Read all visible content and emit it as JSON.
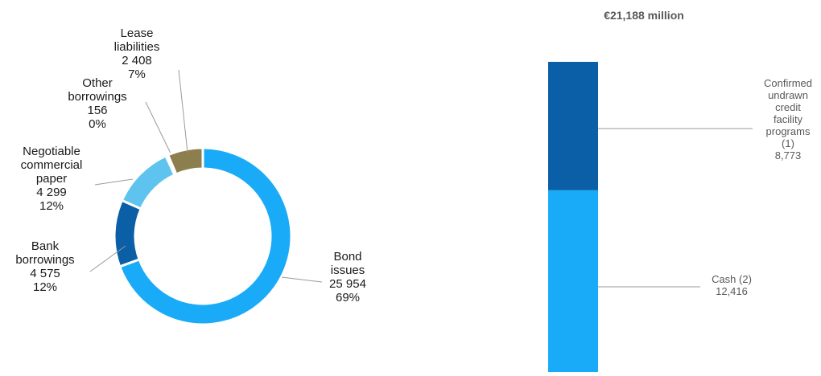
{
  "chart_data": [
    {
      "type": "pie",
      "series": [
        {
          "name": "Bond issues",
          "label_lines": [
            "Bond",
            "issues"
          ],
          "value": 25954,
          "value_label": "25 954",
          "pct_label": "69%",
          "color": "#19ABF7"
        },
        {
          "name": "Bank borrowings",
          "label_lines": [
            "Bank",
            "borrowings"
          ],
          "value": 4575,
          "value_label": "4 575",
          "pct_label": "12%",
          "color": "#0A5FA6"
        },
        {
          "name": "Negotiable commercial paper",
          "label_lines": [
            "Negotiable",
            "commercial",
            "paper"
          ],
          "value": 4299,
          "value_label": "4 299",
          "pct_label": "12%",
          "color": "#5EC3EE"
        },
        {
          "name": "Other borrowings",
          "label_lines": [
            "Other",
            "borrowings"
          ],
          "value": 156,
          "value_label": "156",
          "pct_label": "0%",
          "color": "#B7B7B7"
        },
        {
          "name": "Lease liabilities",
          "label_lines": [
            "Lease",
            "liabilities"
          ],
          "value": 2408,
          "value_label": "2 408",
          "pct_label": "7%",
          "color": "#8C7F4D"
        }
      ]
    },
    {
      "type": "bar",
      "title": "€21,188 million",
      "stacked": true,
      "total": 21188,
      "series": [
        {
          "name": "Cash (2)",
          "label_lines": [
            "Cash (2)"
          ],
          "value": 12416,
          "value_label": "12,416",
          "color": "#19ABF7"
        },
        {
          "name": "Confirmed undrawn credit facility programs (1)",
          "label_lines": [
            "Confirmed",
            "undrawn",
            "credit",
            "facility",
            "programs",
            "(1)"
          ],
          "value": 8773,
          "value_label": "8,773",
          "color": "#0A5FA6"
        }
      ]
    }
  ]
}
